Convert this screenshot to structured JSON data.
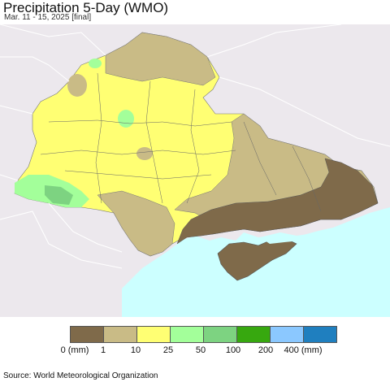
{
  "title": "Precipitation 5-Day (WMO)",
  "subtitle": "Mar. 11 - 15, 2025 [final]",
  "legend": {
    "unit": "(mm)",
    "colors": [
      "#7f6a4a",
      "#c9bb86",
      "#ffff73",
      "#a3ff9a",
      "#7dd381",
      "#37a80f",
      "#8bc8ff",
      "#1f7fbf"
    ],
    "labels": [
      "0 (mm)",
      "1",
      "10",
      "25",
      "50",
      "100",
      "200",
      "400 (mm)"
    ]
  },
  "map_colors": {
    "background_land": "#ece8ed",
    "sea": "#ccffff",
    "border": "#ffffff"
  },
  "source": "Source: World Meteorological Organization"
}
